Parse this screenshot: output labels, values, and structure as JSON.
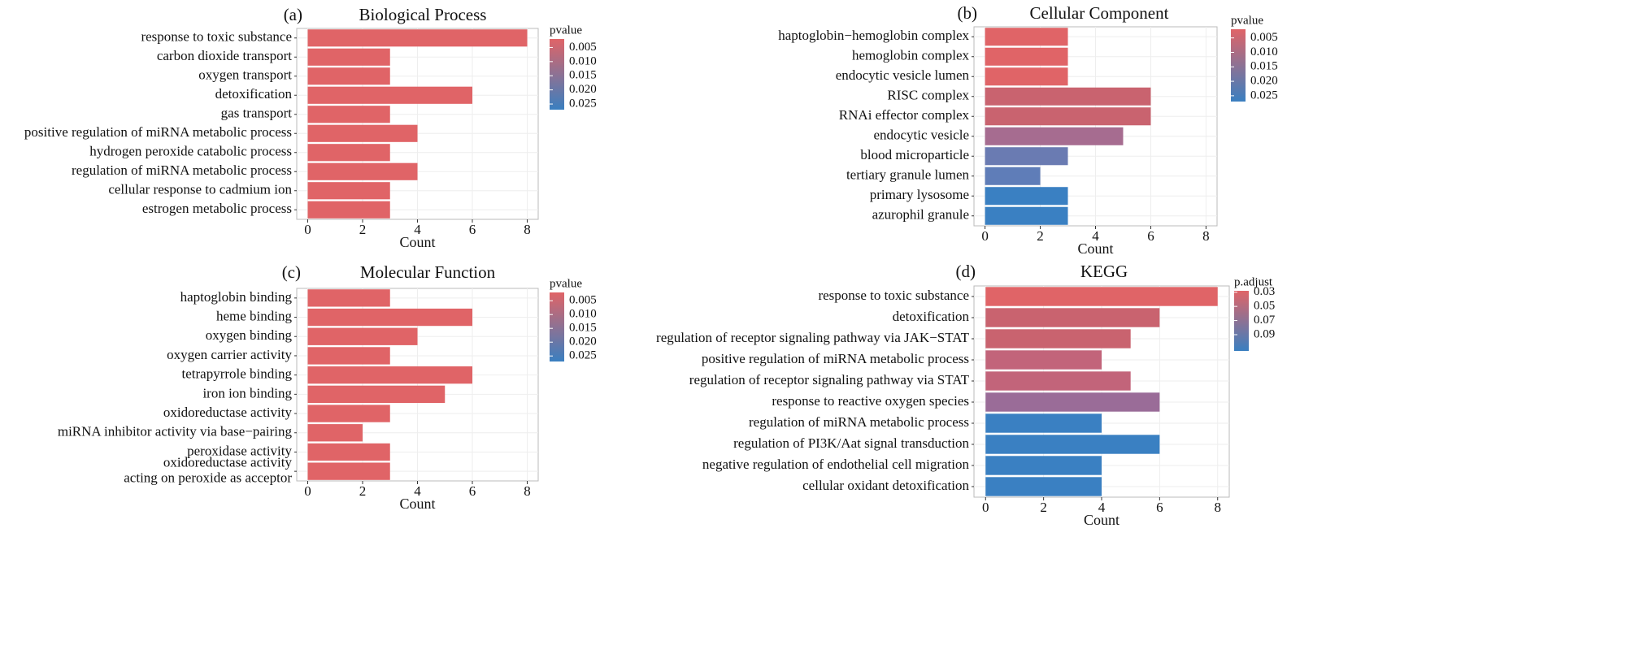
{
  "chart_data": [
    {
      "type": "bar",
      "panel": "(a)",
      "title": "Biological Process",
      "categories": [
        "response to toxic substance",
        "carbon dioxide transport",
        "oxygen transport",
        "detoxification",
        "gas transport",
        "positive regulation of miRNA  metabolic process",
        "hydrogen peroxide catabolic  process",
        "regulation of miRNA   metabolic process",
        "cellular response to cadmium  ion",
        "estrogen metabolic process"
      ],
      "values": [
        8,
        3,
        3,
        6,
        3,
        4,
        3,
        4,
        3,
        3
      ],
      "colors": [
        "#e06467",
        "#e06467",
        "#e06467",
        "#e06467",
        "#e06467",
        "#e06467",
        "#e06467",
        "#e06467",
        "#e06467",
        "#e06467"
      ],
      "xlabel": "Count",
      "xlim": [
        -0.4,
        8.4
      ],
      "xticks": [
        0,
        2,
        4,
        6,
        8
      ],
      "grid": true,
      "legend_title": "pvalue",
      "colorbar_colors": [
        "#e06467",
        "#3a7fc0"
      ],
      "clim": [
        0.002,
        0.027
      ],
      "cticks": [
        0.005,
        {
          "value": 0.01,
          "label": "0.010"
        },
        0.015,
        {
          "value": 0.02,
          "label": "0.020"
        },
        0.025
      ]
    },
    {
      "type": "bar",
      "panel": "(b)",
      "title": "Cellular Component",
      "categories": [
        "haptoglobin−hemoglobin complex",
        "hemoglobin complex",
        "endocytic vesicle lumen",
        "RISC complex",
        "RNAi effector complex",
        "endocytic vesicle",
        "blood microparticle",
        "tertiary granule lumen",
        "primary lysosome",
        "azurophil granule"
      ],
      "values": [
        3,
        3,
        3,
        6,
        6,
        5,
        3,
        2,
        3,
        3
      ],
      "colors": [
        "#e06467",
        "#e06467",
        "#e06467",
        "#c9636f",
        "#c9636f",
        "#a66c90",
        "#6a7bb2",
        "#5f7db8",
        "#3a80c2",
        "#3a80c2"
      ],
      "xlabel": "Count",
      "xlim": [
        -0.4,
        8.4
      ],
      "xticks": [
        0,
        2,
        4,
        6,
        8
      ],
      "grid": true,
      "legend_title": "pvalue",
      "colorbar_colors": [
        "#e06467",
        "#3a7fc0"
      ],
      "clim": [
        0.002,
        0.027
      ],
      "cticks": [
        0.005,
        {
          "value": 0.01,
          "label": "0.010"
        },
        0.015,
        {
          "value": 0.02,
          "label": "0.020"
        },
        0.025
      ]
    },
    {
      "type": "bar",
      "panel": "(c)",
      "title": "Molecular Function",
      "categories": [
        "haptoglobin binding",
        "heme binding",
        "oxygen binding",
        "oxygen carrier activity",
        "tetrapyrrole binding",
        "iron ion binding",
        "oxidoreductase activity",
        "miRNA inhibitor activity via base−pairing",
        "peroxidase activity",
        [
          "oxidoreductase activity",
          "acting on peroxide as acceptor"
        ]
      ],
      "values": [
        3,
        6,
        4,
        3,
        6,
        5,
        3,
        2,
        3,
        3
      ],
      "colors": [
        "#e06467",
        "#e06467",
        "#e06467",
        "#e06467",
        "#e06467",
        "#e06467",
        "#e06467",
        "#e06467",
        "#e06467",
        "#e06467"
      ],
      "xlabel": "Count",
      "xlim": [
        -0.4,
        8.4
      ],
      "xticks": [
        0,
        2,
        4,
        6,
        8
      ],
      "grid": true,
      "legend_title": "pvalue",
      "colorbar_colors": [
        "#e06467",
        "#3a7fc0"
      ],
      "clim": [
        0.002,
        0.027
      ],
      "cticks": [
        0.005,
        {
          "value": 0.01,
          "label": "0.010"
        },
        0.015,
        {
          "value": 0.02,
          "label": "0.020"
        },
        0.025
      ]
    },
    {
      "type": "bar",
      "panel": "(d)",
      "title": "KEGG",
      "categories": [
        "response to toxic substance",
        "detoxification",
        "regulation of receptor signaling pathway via JAK−STAT",
        "positive regulation of miRNA metabolic process",
        "regulation of receptor signaling pathway via STAT",
        "response to reactive oxygen species",
        "regulation of miRNA metabolic process",
        "regulation of PI3K/Aat  signal transduction",
        "negative regulation of endothelial cell migration",
        "cellular oxidant detoxification"
      ],
      "values": [
        8,
        6,
        5,
        4,
        5,
        6,
        4,
        6,
        4,
        4
      ],
      "colors": [
        "#e06467",
        "#c9636f",
        "#c9636f",
        "#c2647a",
        "#c2647a",
        "#9a6c98",
        "#3a80c2",
        "#3a80c2",
        "#3a80c2",
        "#3a80c2"
      ],
      "xlabel": "Count",
      "xlim": [
        -0.4,
        8.4
      ],
      "xticks": [
        0,
        2,
        4,
        6,
        8
      ],
      "grid": true,
      "legend_title": "p.adjust",
      "colorbar_colors": [
        "#e06467",
        "#3a7fc0"
      ],
      "clim": [
        0.028,
        0.113
      ],
      "cticks": [
        0.03,
        0.05,
        0.07,
        0.09
      ]
    }
  ]
}
